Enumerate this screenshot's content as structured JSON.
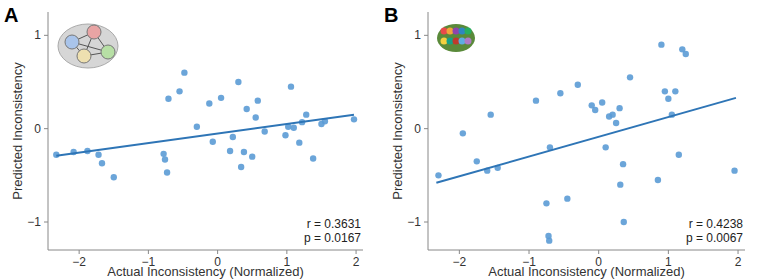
{
  "chart_data": [
    {
      "type": "scatter",
      "title": "A",
      "x_label": "Actual Inconsistency (Normalized)",
      "y_label": "Predicted Inconsistency",
      "x": [
        -2.33,
        -2.08,
        -1.88,
        -1.72,
        -1.67,
        -1.5,
        -0.78,
        -0.76,
        -0.73,
        -0.71,
        -0.55,
        -0.48,
        -0.3,
        -0.12,
        -0.07,
        0.05,
        0.18,
        0.22,
        0.3,
        0.34,
        0.38,
        0.42,
        0.5,
        0.55,
        0.58,
        0.68,
        0.98,
        1.02,
        1.06,
        1.1,
        1.18,
        1.22,
        1.28,
        1.38,
        1.5,
        1.55,
        1.97
      ],
      "y": [
        -0.28,
        -0.25,
        -0.24,
        -0.28,
        -0.37,
        -0.52,
        -0.27,
        -0.33,
        -0.47,
        0.32,
        0.4,
        0.6,
        0.02,
        0.27,
        -0.14,
        0.33,
        -0.24,
        -0.09,
        0.5,
        -0.41,
        -0.25,
        0.21,
        -0.3,
        0.12,
        0.3,
        -0.03,
        -0.07,
        0.02,
        0.45,
        0.01,
        -0.15,
        0.07,
        0.15,
        -0.32,
        0.05,
        0.08,
        0.1
      ],
      "trend_line": {
        "x": [
          -2.33,
          1.97
        ],
        "y": [
          -0.29,
          0.15
        ]
      },
      "annotations": [
        "r = 0.3631",
        "p = 0.0167"
      ],
      "color": "#5b9bd5",
      "marker": "circle",
      "xlim": [
        -2.45,
        2.1
      ],
      "xticks": [
        -2,
        -1,
        0,
        1,
        2
      ],
      "ylim": [
        -1.3,
        1.25
      ],
      "yticks": [
        -1,
        0,
        1
      ],
      "grid": false
    },
    {
      "type": "scatter",
      "title": "B",
      "x_label": "Actual Inconsistency (Normalized)",
      "y_label": "Predicted Inconsistency",
      "x": [
        -2.3,
        -1.95,
        -1.75,
        -1.6,
        -1.55,
        -1.45,
        -0.9,
        -0.75,
        -0.72,
        -0.71,
        -0.7,
        -0.55,
        -0.45,
        -0.3,
        -0.1,
        -0.05,
        0.05,
        0.1,
        0.15,
        0.2,
        0.25,
        0.3,
        0.31,
        0.35,
        0.36,
        0.45,
        0.85,
        0.9,
        0.95,
        1.0,
        1.05,
        1.1,
        1.15,
        1.2,
        1.25,
        1.95
      ],
      "y": [
        -0.5,
        -0.05,
        -0.35,
        -0.45,
        0.15,
        -0.42,
        0.3,
        -0.8,
        -1.15,
        -1.2,
        -0.2,
        0.38,
        -0.75,
        0.47,
        0.25,
        0.2,
        0.28,
        -0.2,
        0.13,
        0.15,
        0.06,
        0.22,
        -0.6,
        -0.38,
        -1.0,
        0.55,
        -0.55,
        0.9,
        0.4,
        0.32,
        0.15,
        0.4,
        -0.28,
        0.85,
        0.8,
        -0.45
      ],
      "trend_line": {
        "x": [
          -2.33,
          1.97
        ],
        "y": [
          -0.58,
          0.33
        ]
      },
      "annotations": [
        "r = 0.4238",
        "p = 0.0067"
      ],
      "color": "#5b9bd5",
      "marker": "circle",
      "xlim": [
        -2.45,
        2.1
      ],
      "xticks": [
        -2,
        -1,
        0,
        1,
        2
      ],
      "ylim": [
        -1.3,
        1.25
      ],
      "yticks": [
        -1,
        0,
        1
      ],
      "grid": false
    }
  ]
}
